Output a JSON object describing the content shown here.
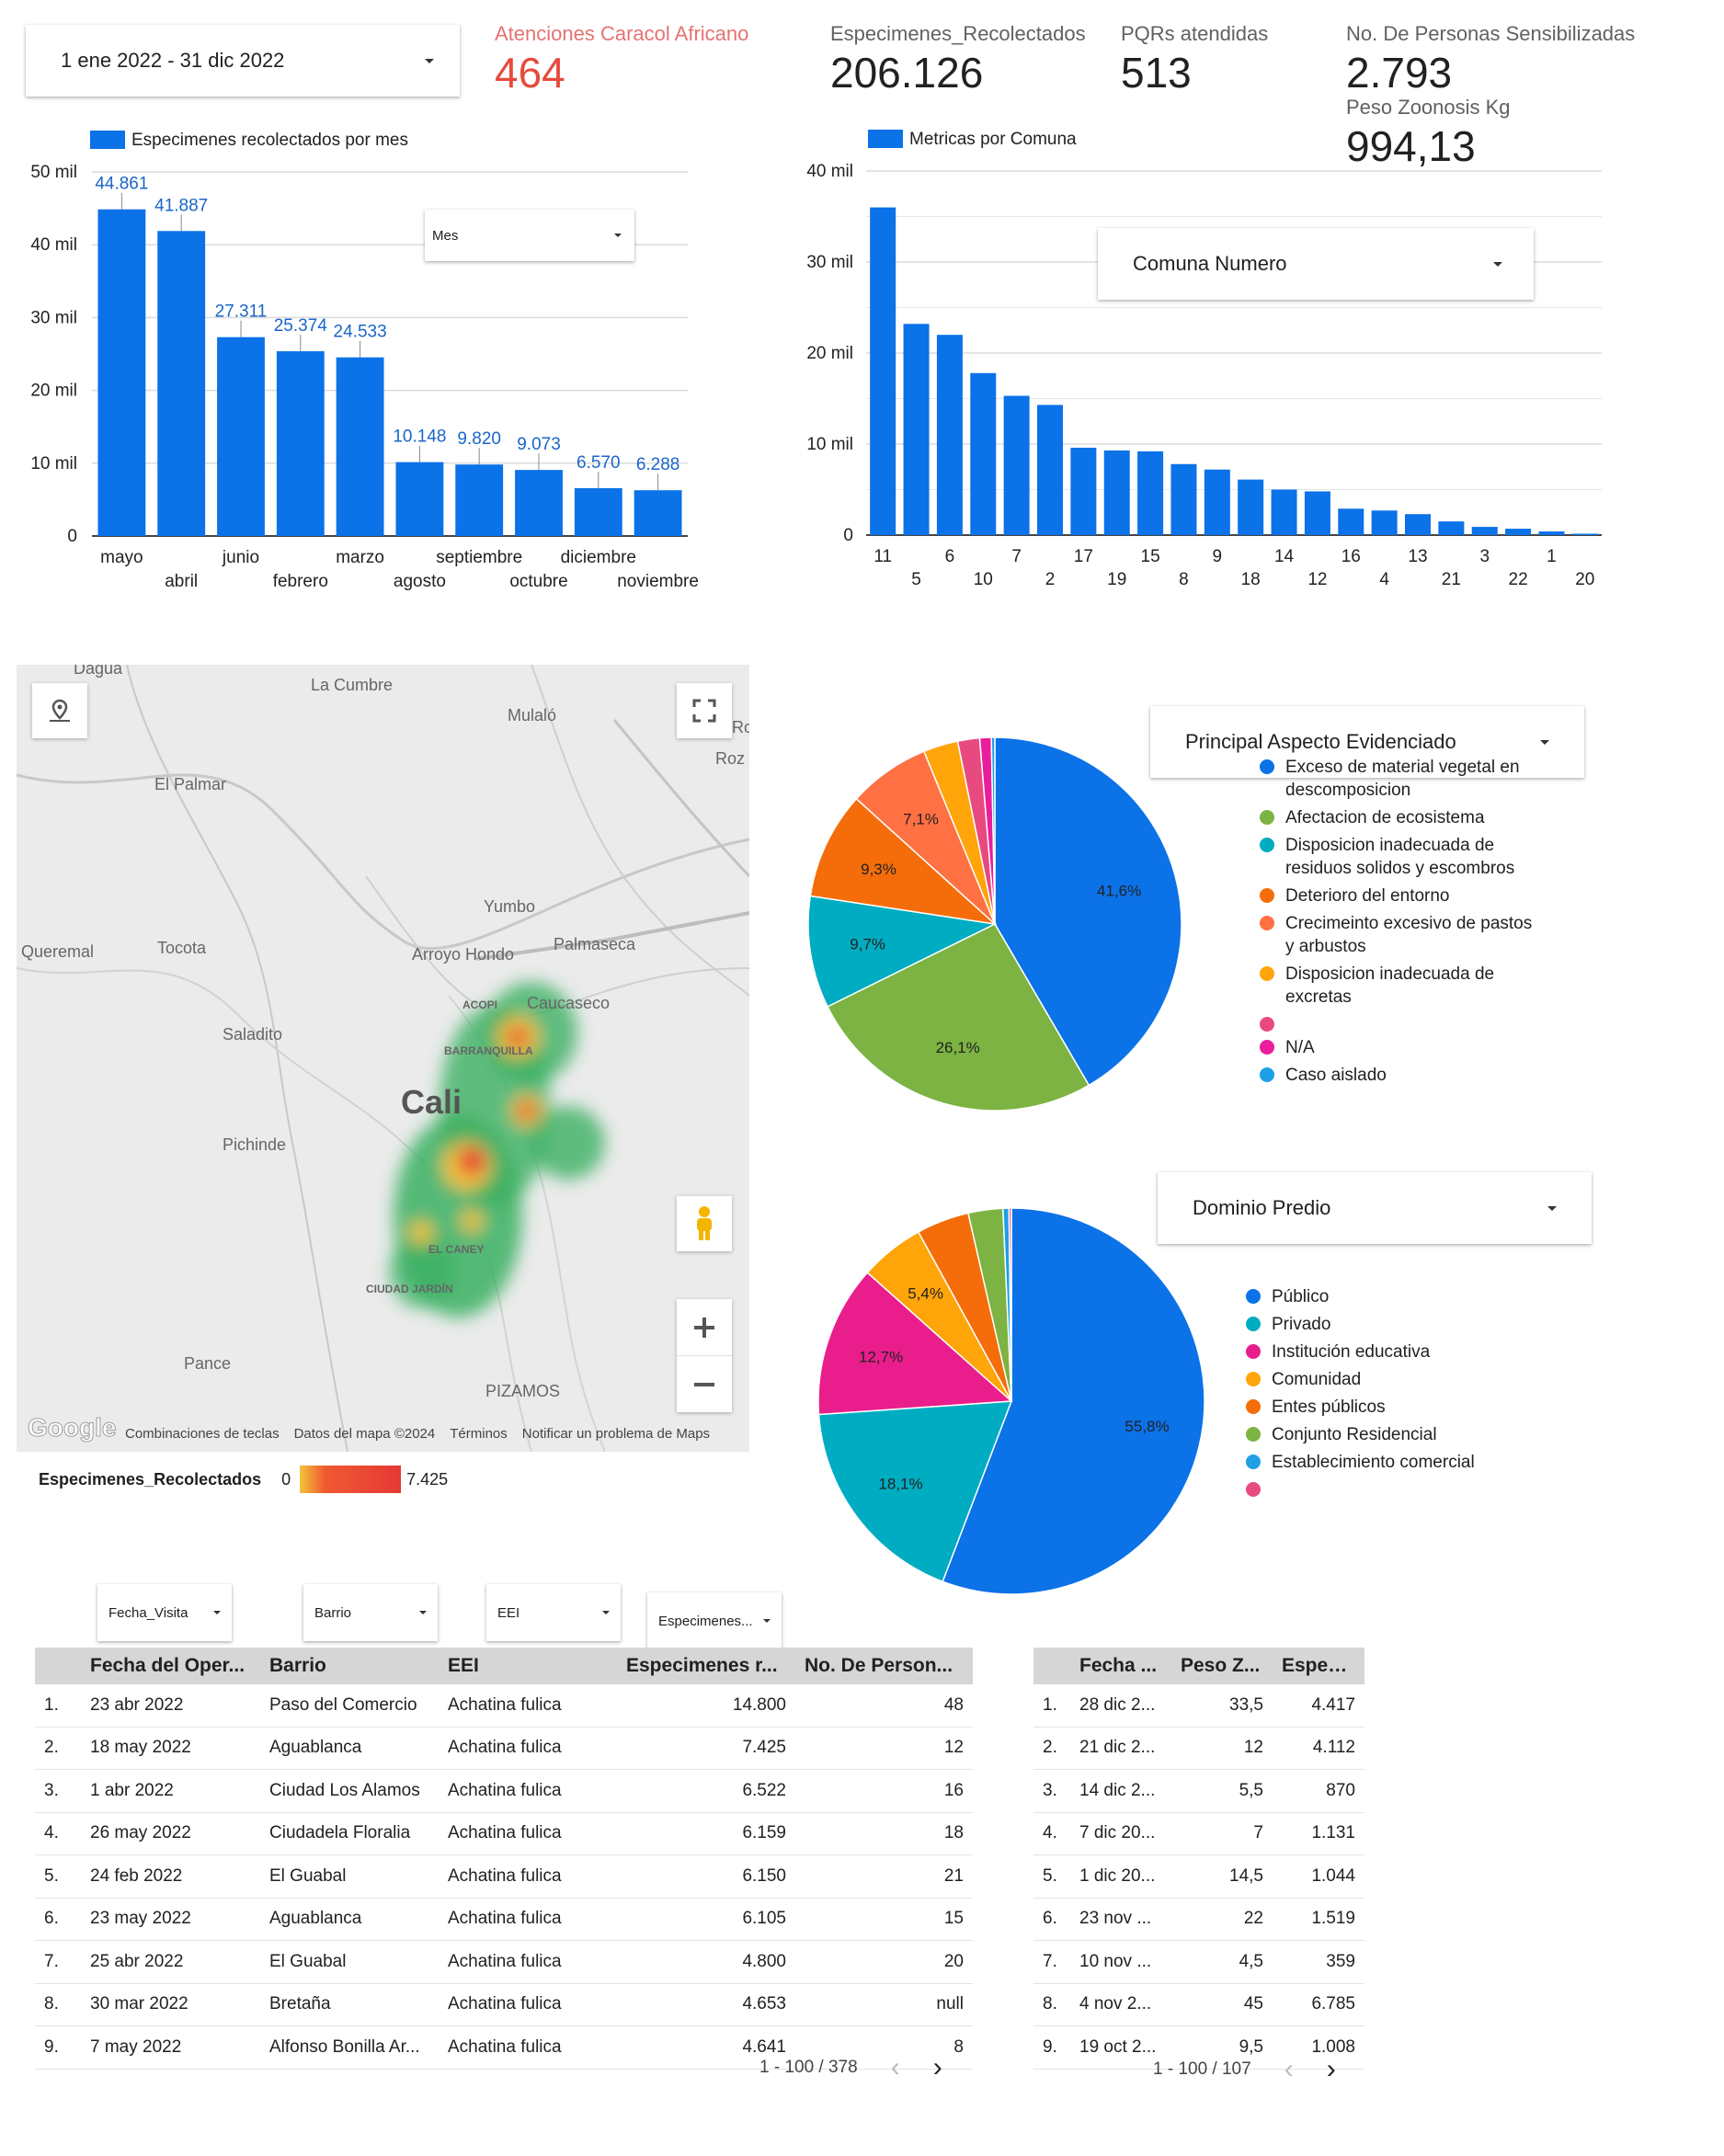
{
  "date_range": {
    "label": "1 ene 2022 - 31 dic 2022"
  },
  "kpis": [
    {
      "label": "Atenciones Caracol Africano",
      "value": "464",
      "color": "#e64a3c"
    },
    {
      "label": "Especimenes_Recolectados",
      "value": "206.126"
    },
    {
      "label": "PQRs atendidas",
      "value": "513"
    },
    {
      "label": "No. De Personas Sensibilizadas",
      "value": "2.793"
    },
    {
      "label": "Peso Zoonosis Kg",
      "value": "994,13"
    }
  ],
  "filters": {
    "mes": "Mes",
    "comuna": "Comuna Numero",
    "aspecto": "Principal Aspecto Evidenciado",
    "dominio": "Dominio Predio",
    "fecha_visita": "Fecha_Visita",
    "barrio": "Barrio",
    "eei": "EEI",
    "especimenes": "Especimenes..."
  },
  "map": {
    "labels": [
      "Dagua",
      "La Cumbre",
      "Mulaló",
      "El Palmar",
      "Yumbo",
      "Palmaseca",
      "l Queremal",
      "Tocota",
      "Arroyo Hondo",
      "Caucaseco",
      "Saladito",
      "Cali",
      "Pichinde",
      "ACOPI",
      "BARRANQUILLA",
      "EL CANEY",
      "CIUDAD JARDÍN",
      "Pance",
      "PIZAMOS",
      "Ro",
      "Roz"
    ],
    "google": "Google",
    "footer": [
      "Combinaciones de teclas",
      "Datos del mapa ©2024",
      "Términos",
      "Notificar un problema de Maps"
    ],
    "legend_title": "Especimenes_Recolectados",
    "legend_min": "0",
    "legend_max": "7.425",
    "icons": [
      "location-icon",
      "fullscreen-icon",
      "pegman-icon",
      "zoom-in-icon",
      "zoom-out-icon"
    ]
  },
  "chart_data": [
    {
      "type": "bar",
      "legend": "Especimenes recolectados por mes",
      "categories": [
        "mayo",
        "abril",
        "junio",
        "febrero",
        "marzo",
        "agosto",
        "septiembre",
        "octubre",
        "diciembre",
        "noviembre"
      ],
      "values": [
        44861,
        41887,
        27311,
        25374,
        24533,
        10148,
        9820,
        9073,
        6570,
        6288
      ],
      "value_labels": [
        "44.861",
        "41.887",
        "27.311",
        "25.374",
        "24.533",
        "10.148",
        "9.820",
        "9.073",
        "6.570",
        "6.288"
      ],
      "y_ticks": [
        "0",
        "10 mil",
        "20 mil",
        "30 mil",
        "40 mil",
        "50 mil"
      ],
      "ylim": [
        0,
        50000
      ],
      "color": "#0b72e8"
    },
    {
      "type": "bar",
      "legend": "Metricas por Comuna",
      "categories": [
        "11",
        "5",
        "6",
        "10",
        "7",
        "2",
        "17",
        "19",
        "15",
        "8",
        "9",
        "18",
        "14",
        "12",
        "16",
        "4",
        "13",
        "21",
        "3",
        "22",
        "1",
        "20"
      ],
      "values": [
        36000,
        23200,
        22000,
        17800,
        15300,
        14300,
        9600,
        9300,
        9200,
        7800,
        7200,
        6100,
        5000,
        4800,
        2900,
        2700,
        2300,
        1500,
        900,
        700,
        400,
        150
      ],
      "y_ticks": [
        "0",
        "10 mil",
        "20 mil",
        "30 mil",
        "40 mil"
      ],
      "ylim": [
        0,
        40000
      ],
      "color": "#0b72e8"
    },
    {
      "type": "pie",
      "slices": [
        {
          "name": "Exceso de material vegetal en descomposicion",
          "value": 41.6,
          "label": "41,6%",
          "color": "#0b72e8"
        },
        {
          "name": "Afectacion de ecosistema",
          "value": 26.1,
          "label": "26,1%",
          "color": "#7cb342"
        },
        {
          "name": "Disposicion inadecuada de residuos solidos y escombros",
          "value": 9.7,
          "label": "9,7%",
          "color": "#00acc1"
        },
        {
          "name": "Deterioro del entorno",
          "value": 9.3,
          "label": "9,3%",
          "color": "#f46d0a"
        },
        {
          "name": "Crecimeinto excesivo de pastos y arbustos",
          "value": 7.1,
          "label": "7,1%",
          "color": "#ff7043"
        },
        {
          "name": "Disposicion inadecuada de excretas",
          "value": 3.0,
          "label": "",
          "color": "#ffa50a"
        },
        {
          "name": "",
          "value": 1.9,
          "label": "",
          "color": "#e84a7f"
        },
        {
          "name": "N/A",
          "value": 1.0,
          "label": "",
          "color": "#e91e9c"
        },
        {
          "name": "Caso aislado",
          "value": 0.3,
          "label": "",
          "color": "#1ea0e6"
        }
      ]
    },
    {
      "type": "pie",
      "slices": [
        {
          "name": "Público",
          "value": 55.8,
          "label": "55,8%",
          "color": "#0b72e8"
        },
        {
          "name": "Privado",
          "value": 18.1,
          "label": "18,1%",
          "color": "#00acc1"
        },
        {
          "name": "Institución educativa",
          "value": 12.7,
          "label": "12,7%",
          "color": "#e91e8c"
        },
        {
          "name": "Comunidad",
          "value": 5.4,
          "label": "5,4%",
          "color": "#ffa50a"
        },
        {
          "name": "Entes públicos",
          "value": 4.4,
          "label": "",
          "color": "#f46d0a"
        },
        {
          "name": "Conjunto Residencial",
          "value": 2.9,
          "label": "",
          "color": "#7cb342"
        },
        {
          "name": "Establecimiento comercial",
          "value": 0.5,
          "label": "",
          "color": "#1ea0e6"
        },
        {
          "name": "",
          "value": 0.2,
          "label": "",
          "color": "#e84a7f"
        }
      ]
    }
  ],
  "table1": {
    "headers": [
      "Fecha del Oper...",
      "Barrio",
      "EEI",
      "Especimenes r...",
      "No. De Person..."
    ],
    "rows": [
      [
        "1.",
        "23 abr 2022",
        "Paso del Comercio",
        "Achatina fulica",
        "14.800",
        "48"
      ],
      [
        "2.",
        "18 may 2022",
        "Aguablanca",
        "Achatina fulica",
        "7.425",
        "12"
      ],
      [
        "3.",
        "1 abr 2022",
        "Ciudad Los Alamos",
        "Achatina fulica",
        "6.522",
        "16"
      ],
      [
        "4.",
        "26 may 2022",
        "Ciudadela Floralia",
        "Achatina fulica",
        "6.159",
        "18"
      ],
      [
        "5.",
        "24 feb 2022",
        "El Guabal",
        "Achatina fulica",
        "6.150",
        "21"
      ],
      [
        "6.",
        "23 may 2022",
        "Aguablanca",
        "Achatina fulica",
        "6.105",
        "15"
      ],
      [
        "7.",
        "25 abr 2022",
        "El Guabal",
        "Achatina fulica",
        "4.800",
        "20"
      ],
      [
        "8.",
        "30 mar 2022",
        "Bretaña",
        "Achatina fulica",
        "4.653",
        "null"
      ],
      [
        "9.",
        "7 may 2022",
        "Alfonso Bonilla Ar...",
        "Achatina fulica",
        "4.641",
        "8"
      ]
    ],
    "pager": "1 - 100 / 378"
  },
  "table2": {
    "headers": [
      "Fecha ...",
      "Peso Z...",
      "Especi..."
    ],
    "rows": [
      [
        "1.",
        "28 dic 2...",
        "33,5",
        "4.417"
      ],
      [
        "2.",
        "21 dic 2...",
        "12",
        "4.112"
      ],
      [
        "3.",
        "14 dic 2...",
        "5,5",
        "870"
      ],
      [
        "4.",
        "7 dic 20...",
        "7",
        "1.131"
      ],
      [
        "5.",
        "1 dic 20...",
        "14,5",
        "1.044"
      ],
      [
        "6.",
        "23 nov ...",
        "22",
        "1.519"
      ],
      [
        "7.",
        "10 nov ...",
        "4,5",
        "359"
      ],
      [
        "8.",
        "4 nov 2...",
        "45",
        "6.785"
      ],
      [
        "9.",
        "19 oct 2...",
        "9,5",
        "1.008"
      ]
    ],
    "pager": "1 - 100 / 107"
  },
  "pager_icons": {
    "prev": "‹",
    "next": "›"
  }
}
